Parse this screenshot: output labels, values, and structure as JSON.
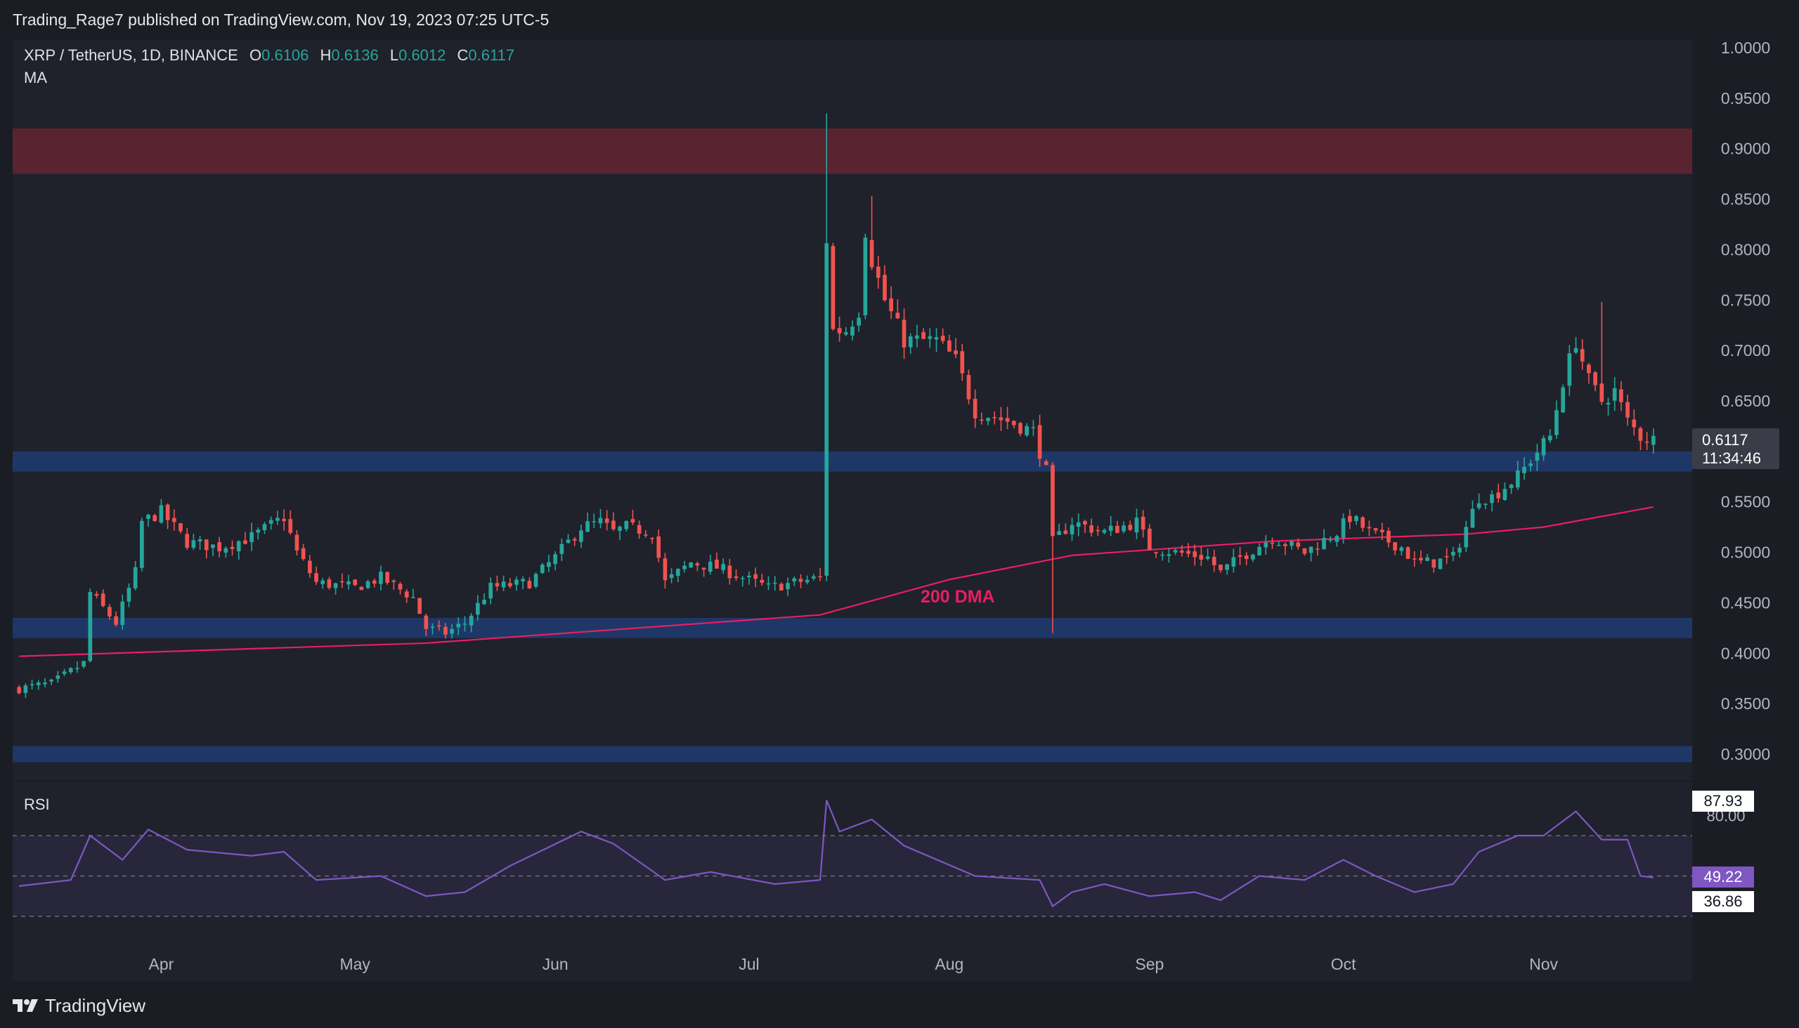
{
  "header": {
    "publisher_line": "Trading_Rage7 published on TradingView.com, Nov 19, 2023 07:25 UTC-5"
  },
  "ticker": {
    "symbol": "XRP / TetherUS, 1D, BINANCE",
    "open_label": "O",
    "open": "0.6106",
    "high_label": "H",
    "high": "0.6136",
    "low_label": "L",
    "low": "0.6012",
    "close_label": "C",
    "close": "0.6117"
  },
  "indicators": {
    "ma_label": "MA",
    "rsi_label": "RSI",
    "dma_annotation": "200 DMA"
  },
  "price_badge": {
    "price": "0.6117",
    "countdown": "11:34:46"
  },
  "rsi_badges": {
    "high": "87.93",
    "current": "49.22",
    "low": "36.86"
  },
  "footer": {
    "brand": "TradingView"
  },
  "colors": {
    "background": "#1b1d25",
    "up": "#26a69a",
    "down": "#ef5350",
    "ma": "#e91e63",
    "rsi": "#7e57c2",
    "resistance_zone": "#5d2430",
    "support_zone": "#1e3a6e"
  },
  "chart_data": [
    {
      "type": "candlestick",
      "title": "XRP / TetherUS, 1D, BINANCE",
      "ylim": [
        0.28,
        1.0
      ],
      "y_ticks": [
        "1.0000",
        "0.9500",
        "0.9000",
        "0.8500",
        "0.8000",
        "0.7500",
        "0.7000",
        "0.6500",
        "0.5500",
        "0.5000",
        "0.4500",
        "0.4000",
        "0.3500",
        "0.3000"
      ],
      "x_ticks": [
        "Apr",
        "May",
        "Jun",
        "Jul",
        "Aug",
        "Sep",
        "Oct",
        "Nov"
      ],
      "close_path": [
        [
          "2023-03-10",
          0.365
        ],
        [
          "2023-03-15",
          0.37
        ],
        [
          "2023-03-20",
          0.39
        ],
        [
          "2023-03-21",
          0.46
        ],
        [
          "2023-03-25",
          0.43
        ],
        [
          "2023-03-28",
          0.48
        ],
        [
          "2023-03-29",
          0.53
        ],
        [
          "2023-04-01",
          0.54
        ],
        [
          "2023-04-05",
          0.51
        ],
        [
          "2023-04-10",
          0.505
        ],
        [
          "2023-04-15",
          0.515
        ],
        [
          "2023-04-20",
          0.535
        ],
        [
          "2023-04-22",
          0.5
        ],
        [
          "2023-04-25",
          0.47
        ],
        [
          "2023-05-01",
          0.465
        ],
        [
          "2023-05-05",
          0.475
        ],
        [
          "2023-05-10",
          0.455
        ],
        [
          "2023-05-12",
          0.425
        ],
        [
          "2023-05-15",
          0.42
        ],
        [
          "2023-05-18",
          0.43
        ],
        [
          "2023-05-22",
          0.465
        ],
        [
          "2023-05-28",
          0.47
        ],
        [
          "2023-06-01",
          0.495
        ],
        [
          "2023-06-05",
          0.525
        ],
        [
          "2023-06-08",
          0.53
        ],
        [
          "2023-06-10",
          0.52
        ],
        [
          "2023-06-12",
          0.525
        ],
        [
          "2023-06-16",
          0.52
        ],
        [
          "2023-06-18",
          0.47
        ],
        [
          "2023-06-22",
          0.49
        ],
        [
          "2023-06-26",
          0.485
        ],
        [
          "2023-06-30",
          0.475
        ],
        [
          "2023-07-04",
          0.465
        ],
        [
          "2023-07-08",
          0.47
        ],
        [
          "2023-07-12",
          0.475
        ],
        [
          "2023-07-13",
          0.81
        ],
        [
          "2023-07-14",
          0.72
        ],
        [
          "2023-07-16",
          0.72
        ],
        [
          "2023-07-18",
          0.74
        ],
        [
          "2023-07-19",
          0.82
        ],
        [
          "2023-07-20",
          0.79
        ],
        [
          "2023-07-22",
          0.75
        ],
        [
          "2023-07-25",
          0.71
        ],
        [
          "2023-07-30",
          0.71
        ],
        [
          "2023-08-02",
          0.69
        ],
        [
          "2023-08-05",
          0.64
        ],
        [
          "2023-08-10",
          0.63
        ],
        [
          "2023-08-14",
          0.62
        ],
        [
          "2023-08-16",
          0.58
        ],
        [
          "2023-08-17",
          0.51
        ],
        [
          "2023-08-20",
          0.53
        ],
        [
          "2023-08-25",
          0.52
        ],
        [
          "2023-08-30",
          0.53
        ],
        [
          "2023-09-01",
          0.505
        ],
        [
          "2023-09-05",
          0.5
        ],
        [
          "2023-09-10",
          0.495
        ],
        [
          "2023-09-12",
          0.48
        ],
        [
          "2023-09-15",
          0.495
        ],
        [
          "2023-09-20",
          0.515
        ],
        [
          "2023-09-25",
          0.5
        ],
        [
          "2023-09-30",
          0.52
        ],
        [
          "2023-10-02",
          0.535
        ],
        [
          "2023-10-05",
          0.52
        ],
        [
          "2023-10-10",
          0.505
        ],
        [
          "2023-10-12",
          0.49
        ],
        [
          "2023-10-15",
          0.49
        ],
        [
          "2023-10-18",
          0.495
        ],
        [
          "2023-10-20",
          0.525
        ],
        [
          "2023-10-22",
          0.555
        ],
        [
          "2023-10-24",
          0.555
        ],
        [
          "2023-10-28",
          0.575
        ],
        [
          "2023-10-31",
          0.6
        ],
        [
          "2023-11-02",
          0.615
        ],
        [
          "2023-11-04",
          0.67
        ],
        [
          "2023-11-06",
          0.71
        ],
        [
          "2023-11-08",
          0.67
        ],
        [
          "2023-11-10",
          0.65
        ],
        [
          "2023-11-12",
          0.66
        ],
        [
          "2023-11-14",
          0.63
        ],
        [
          "2023-11-16",
          0.615
        ],
        [
          "2023-11-18",
          0.6117
        ]
      ],
      "wick_spikes": [
        {
          "date": "2023-07-13",
          "high": 0.935
        },
        {
          "date": "2023-07-20",
          "high": 0.853
        },
        {
          "date": "2023-08-17",
          "low": 0.42
        },
        {
          "date": "2023-11-10",
          "high": 0.748
        }
      ],
      "moving_average_200": {
        "name": "200 DMA",
        "points": [
          [
            "2023-03-10",
            0.397
          ],
          [
            "2023-05-12",
            0.41
          ],
          [
            "2023-07-12",
            0.438
          ],
          [
            "2023-08-01",
            0.473
          ],
          [
            "2023-08-20",
            0.497
          ],
          [
            "2023-09-20",
            0.511
          ],
          [
            "2023-10-20",
            0.518
          ],
          [
            "2023-11-01",
            0.525
          ],
          [
            "2023-11-18",
            0.545
          ]
        ]
      },
      "zones": [
        {
          "from": 0.875,
          "to": 0.92,
          "kind": "resistance"
        },
        {
          "from": 0.58,
          "to": 0.6,
          "kind": "support"
        },
        {
          "from": 0.415,
          "to": 0.435,
          "kind": "support"
        },
        {
          "from": 0.292,
          "to": 0.308,
          "kind": "support"
        }
      ]
    },
    {
      "type": "line",
      "title": "RSI",
      "ylim": [
        30,
        92
      ],
      "bands": [
        70,
        50,
        30
      ],
      "y_ticks": [
        "80.00"
      ],
      "values_path": [
        [
          "2023-03-10",
          45
        ],
        [
          "2023-03-18",
          48
        ],
        [
          "2023-03-21",
          70
        ],
        [
          "2023-03-26",
          58
        ],
        [
          "2023-03-30",
          73
        ],
        [
          "2023-04-05",
          63
        ],
        [
          "2023-04-15",
          60
        ],
        [
          "2023-04-20",
          62
        ],
        [
          "2023-04-25",
          48
        ],
        [
          "2023-05-05",
          50
        ],
        [
          "2023-05-12",
          40
        ],
        [
          "2023-05-18",
          42
        ],
        [
          "2023-05-25",
          55
        ],
        [
          "2023-06-05",
          72
        ],
        [
          "2023-06-10",
          66
        ],
        [
          "2023-06-18",
          48
        ],
        [
          "2023-06-25",
          52
        ],
        [
          "2023-07-05",
          46
        ],
        [
          "2023-07-12",
          48
        ],
        [
          "2023-07-13",
          87.5
        ],
        [
          "2023-07-15",
          72
        ],
        [
          "2023-07-20",
          78
        ],
        [
          "2023-07-25",
          65
        ],
        [
          "2023-08-05",
          50
        ],
        [
          "2023-08-15",
          48
        ],
        [
          "2023-08-17",
          35
        ],
        [
          "2023-08-20",
          42
        ],
        [
          "2023-08-25",
          46
        ],
        [
          "2023-09-01",
          40
        ],
        [
          "2023-09-08",
          42
        ],
        [
          "2023-09-12",
          38
        ],
        [
          "2023-09-18",
          50
        ],
        [
          "2023-09-25",
          48
        ],
        [
          "2023-10-01",
          58
        ],
        [
          "2023-10-06",
          50
        ],
        [
          "2023-10-12",
          42
        ],
        [
          "2023-10-18",
          46
        ],
        [
          "2023-10-22",
          62
        ],
        [
          "2023-10-28",
          70
        ],
        [
          "2023-11-01",
          70
        ],
        [
          "2023-11-06",
          82
        ],
        [
          "2023-11-10",
          68
        ],
        [
          "2023-11-14",
          68
        ],
        [
          "2023-11-16",
          50
        ],
        [
          "2023-11-18",
          49.22
        ]
      ]
    }
  ]
}
